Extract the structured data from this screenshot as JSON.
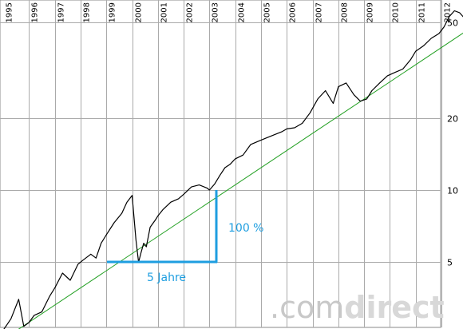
{
  "chart_data": {
    "type": "line",
    "y_scale": "log",
    "ylim": [
      2.4,
      60
    ],
    "xlim": [
      1995.0,
      2013.2
    ],
    "x_tick_labels": [
      "1995",
      "1996",
      "1997",
      "1998",
      "1999",
      "2000",
      "2001",
      "2002",
      "2003",
      "2004",
      "2005",
      "2006",
      "2007",
      "2008",
      "2009",
      "2010",
      "2011",
      "2012"
    ],
    "y_tick_labels": [
      {
        "value": 5,
        "label": "5"
      },
      {
        "value": 10,
        "label": "10"
      },
      {
        "value": 20,
        "label": "20"
      },
      {
        "value": 50,
        "label": "50"
      }
    ],
    "grid": "vertical year lines and horizontal lines at y ticks",
    "series": [
      {
        "color": "#000000",
        "x": [
          1995.0,
          1995.3,
          1995.6,
          1995.8,
          1996.0,
          1996.2,
          1996.5,
          1996.8,
          1997.0,
          1997.3,
          1997.6,
          1997.9,
          1998.1,
          1998.4,
          1998.6,
          1998.8,
          1999.0,
          1999.3,
          1999.6,
          1999.8,
          2000.0,
          2000.15,
          2000.25,
          2000.35,
          2000.45,
          2000.55,
          2000.7,
          2000.9,
          2001.0,
          2001.2,
          2001.5,
          2001.8,
          2002.0,
          2002.3,
          2002.6,
          2002.9,
          2003.0,
          2003.2,
          2003.4,
          2003.6,
          2003.8,
          2004.0,
          2004.3,
          2004.6,
          2004.9,
          2005.2,
          2005.5,
          2005.8,
          2006.0,
          2006.3,
          2006.6,
          2006.9,
          2007.2,
          2007.5,
          2007.8,
          2008.0,
          2008.3,
          2008.6,
          2008.85,
          2009.1,
          2009.3,
          2009.6,
          2009.9,
          2010.2,
          2010.5,
          2010.8,
          2011.0,
          2011.3,
          2011.6,
          2011.9,
          2012.1,
          2012.3,
          2012.5,
          2012.7,
          2012.9,
          2013.1
        ],
        "y": [
          2.6,
          2.9,
          3.5,
          2.7,
          2.8,
          3.0,
          3.1,
          3.6,
          3.9,
          4.5,
          4.2,
          4.9,
          5.1,
          5.4,
          5.2,
          6.0,
          6.5,
          7.3,
          8.0,
          8.9,
          9.5,
          6.2,
          5.0,
          5.5,
          6.0,
          5.8,
          7.0,
          7.5,
          7.8,
          8.3,
          8.9,
          9.2,
          9.6,
          10.3,
          10.5,
          10.2,
          10.0,
          10.6,
          11.5,
          12.4,
          12.8,
          13.5,
          14.0,
          15.5,
          16.0,
          16.5,
          17.0,
          17.5,
          18.0,
          18.2,
          19.0,
          21.0,
          24.0,
          26.0,
          23.0,
          27.0,
          28.0,
          25.0,
          23.5,
          24.0,
          26.0,
          28.0,
          30.0,
          31.0,
          32.0,
          35.0,
          38.0,
          40.0,
          43.0,
          45.0,
          48.0,
          53.0,
          56.0,
          55.0,
          52.0,
          51.0
        ]
      },
      {
        "color": "#22a022",
        "x": [
          1995.3,
          2013.2
        ],
        "y": [
          2.5,
          48.0
        ]
      }
    ],
    "annotations": [
      {
        "label": "100 %",
        "color": "#1e9ee0"
      },
      {
        "label": "5 Jahre",
        "color": "#1e9ee0"
      }
    ]
  },
  "watermark": {
    "brand": "comdirect",
    "dot": ".",
    "prefix": "com",
    "suffix": "direct"
  }
}
